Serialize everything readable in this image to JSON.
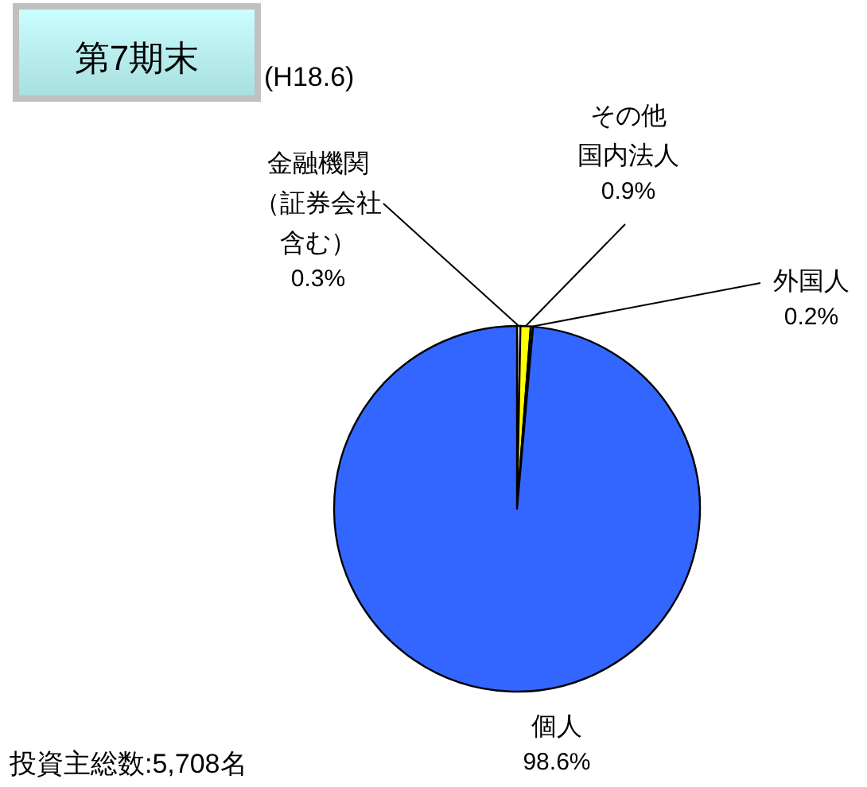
{
  "chart_data": {
    "type": "pie",
    "title": "第7期末",
    "subtitle": "(H18.6)",
    "categories": [
      "金融機関（証券会社含む）",
      "その他国内法人",
      "外国人",
      "個人"
    ],
    "values": [
      0.3,
      0.9,
      0.2,
      98.6
    ],
    "value_labels": [
      "0.3%",
      "0.9%",
      "0.2%",
      "98.6%"
    ],
    "colors": [
      "#ffffff",
      "#ffff00",
      "#00cc66",
      "#3366ff"
    ],
    "annotations": [
      "投資主総数:5,708名"
    ]
  }
}
